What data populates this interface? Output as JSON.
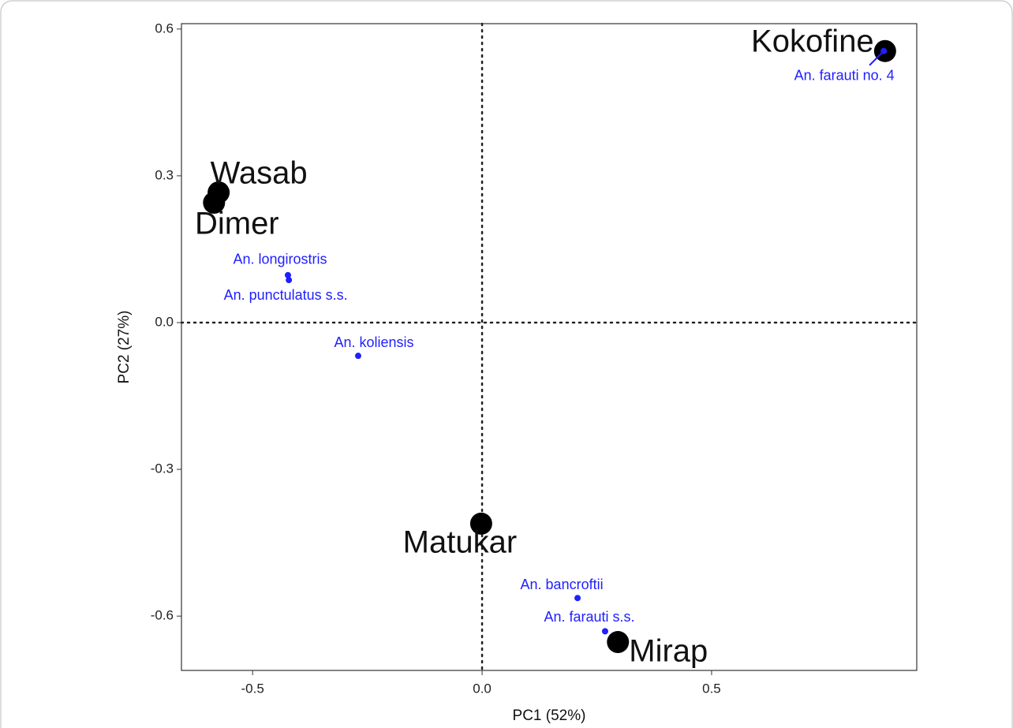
{
  "chart_data": {
    "type": "scatter",
    "xlabel": "PC1 (52%)",
    "ylabel": "PC2 (27%)",
    "xlim": [
      -0.655,
      0.947
    ],
    "ylim": [
      -0.711,
      0.611
    ],
    "xticks": [
      -0.5,
      {
        "value": 0,
        "label": "0.0"
      },
      0.5
    ],
    "yticks": [
      -0.6,
      -0.3,
      {
        "value": 0,
        "label": "0.0"
      },
      0.3,
      0.6
    ],
    "reference_lines": true,
    "series": [
      {
        "color": "#000000",
        "labels": [
          "Kokofine",
          "Wasab",
          "Dimer",
          "Matukar",
          "Mirap"
        ],
        "x": [
          0.878,
          -0.574,
          -0.584,
          -0.002,
          0.296
        ],
        "y": [
          0.555,
          0.266,
          0.245,
          -0.411,
          -0.653
        ]
      },
      {
        "color": "#1f1fff",
        "labels": [
          "An. farauti no. 4",
          "An. longirostris",
          "An. punctulatus s.s.",
          "An. koliensis",
          "An. bancroftii",
          "An. farauti s.s."
        ],
        "x": [
          0.875,
          -0.423,
          -0.421,
          -0.27,
          0.208,
          0.268
        ],
        "y": [
          0.555,
          0.097,
          0.087,
          -0.068,
          -0.563,
          -0.631
        ]
      }
    ]
  }
}
